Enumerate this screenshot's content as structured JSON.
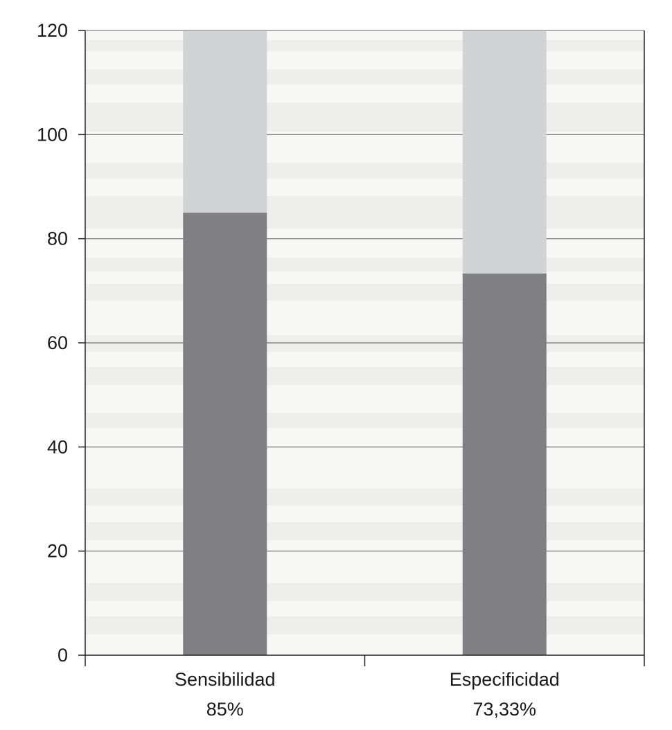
{
  "chart_data": {
    "type": "bar",
    "stacked": true,
    "categories": [
      "Sensibilidad",
      "Especificidad"
    ],
    "category_sublabels": [
      "85%",
      "73,33%"
    ],
    "series": [
      {
        "values": [
          85,
          73.33
        ],
        "color": "#808084"
      },
      {
        "values": [
          35,
          46.67
        ],
        "color": "#d2d3d5"
      }
    ],
    "ylim": [
      0,
      120
    ],
    "yticks": [
      0,
      20,
      40,
      60,
      80,
      100,
      120
    ],
    "grid": true,
    "title": "",
    "xlabel": "",
    "ylabel": ""
  }
}
